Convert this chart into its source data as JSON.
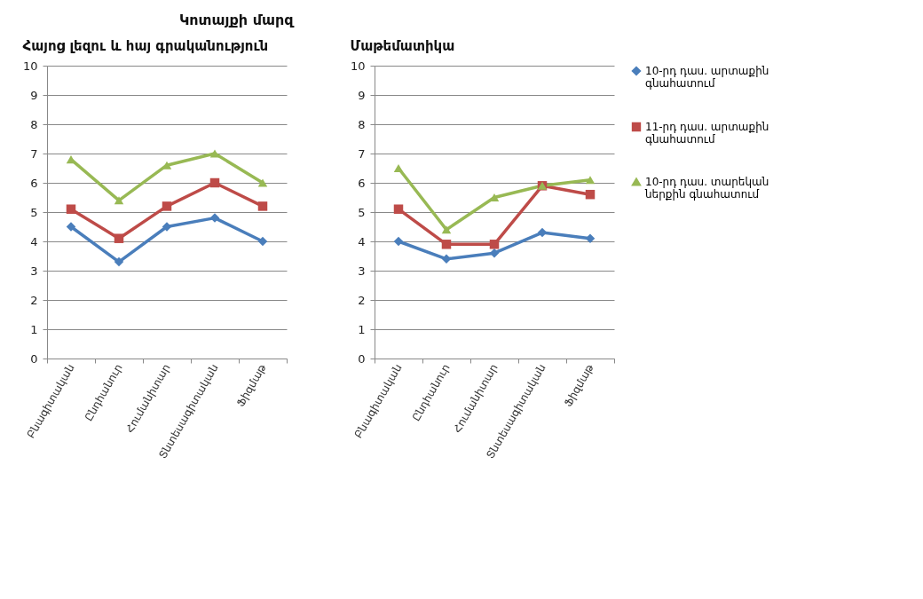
{
  "chart_data": [
    {
      "type": "line",
      "title": "Կոտայքի մարզ",
      "subtitle": "Հայոց լեզու և հայ գրականություն",
      "categories": [
        "Բնագիտական",
        "Ընդհանուր",
        "Հումանիտար",
        "Տնտեսագիտական",
        "Ֆիզմաթ"
      ],
      "ylim": [
        0,
        10
      ],
      "yticks": [
        0,
        1,
        2,
        3,
        4,
        5,
        6,
        7,
        8,
        9,
        10
      ],
      "grid": "y",
      "legend": "right",
      "series": [
        {
          "name": "10-րդ դաս. արտաքին գնահատում",
          "color": "#4a7ebb",
          "marker": "diamond",
          "values": [
            4.5,
            3.3,
            4.5,
            4.8,
            4.0
          ]
        },
        {
          "name": "11-րդ դաս. արտաքին գնահատում",
          "color": "#be4b48",
          "marker": "square",
          "values": [
            5.1,
            4.1,
            5.2,
            6.0,
            5.2
          ]
        },
        {
          "name": "10-րդ դաս. տարեկան ներքին գնահատում",
          "color": "#98b954",
          "marker": "triangle",
          "values": [
            6.8,
            5.4,
            6.6,
            7.0,
            6.0
          ]
        }
      ]
    },
    {
      "type": "line",
      "title": "Մաթեմատիկա",
      "categories": [
        "Բնագիտական",
        "Ընդհանուր",
        "Հումանիտար",
        "Տնտեսագիտական",
        "Ֆիզմաթ"
      ],
      "ylim": [
        0,
        10
      ],
      "yticks": [
        0,
        1,
        2,
        3,
        4,
        5,
        6,
        7,
        8,
        9,
        10
      ],
      "grid": "y",
      "legend": "right",
      "series": [
        {
          "name": "10-րդ դաս. արտաքին գնահատում",
          "color": "#4a7ebb",
          "marker": "diamond",
          "values": [
            4.0,
            3.4,
            3.6,
            4.3,
            4.1
          ]
        },
        {
          "name": "11-րդ դաս. արտաքին գնահատում",
          "color": "#be4b48",
          "marker": "square",
          "values": [
            5.1,
            3.9,
            3.9,
            5.9,
            5.6
          ]
        },
        {
          "name": "10-րդ դաս. տարեկան ներքին գնահատում",
          "color": "#98b954",
          "marker": "triangle",
          "values": [
            6.5,
            4.4,
            5.5,
            5.9,
            6.1
          ]
        }
      ]
    }
  ]
}
